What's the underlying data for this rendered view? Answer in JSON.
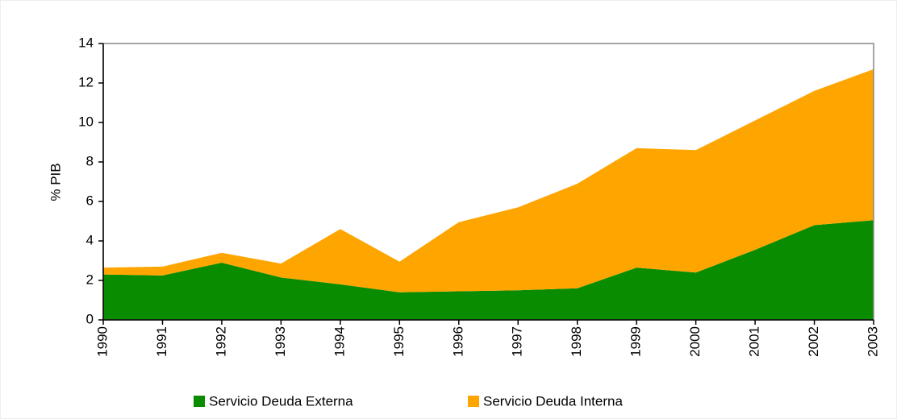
{
  "chart_data": {
    "type": "stacked-area",
    "y_label": "% PIB",
    "categories": [
      "1990",
      "1991",
      "1992",
      "1993",
      "1994",
      "1995",
      "1996",
      "1997",
      "1998",
      "1999",
      "2000",
      "2001",
      "2002",
      "2003"
    ],
    "series": [
      {
        "name": "Servicio Deuda Externa",
        "color": "#0a8c00",
        "values": [
          2.3,
          2.25,
          2.9,
          2.15,
          1.8,
          1.4,
          1.45,
          1.5,
          1.6,
          2.65,
          2.4,
          3.55,
          4.8,
          5.05
        ]
      },
      {
        "name": "Servicio Deuda Interna",
        "color": "#ffa500",
        "values": [
          0.35,
          0.45,
          0.5,
          0.7,
          2.8,
          1.55,
          3.5,
          4.2,
          5.3,
          6.05,
          6.2,
          6.55,
          6.8,
          7.65
        ]
      }
    ],
    "ylim": [
      0,
      14
    ],
    "yticks": [
      0,
      2,
      4,
      6,
      8,
      10,
      12,
      14
    ]
  }
}
